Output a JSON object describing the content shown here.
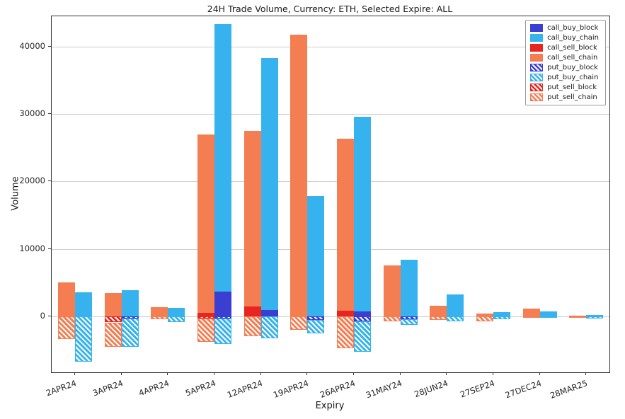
{
  "chart_data": {
    "type": "bar",
    "title": "24H Trade Volume, Currency: ETH, Selected Expire: ALL",
    "xlabel": "Expiry",
    "ylabel": "Volume",
    "ylim": [
      -8300,
      44500
    ],
    "yticks": [
      0,
      10000,
      20000,
      30000,
      40000
    ],
    "grid": "horizontal",
    "legend_position": "upper-right",
    "bar_groups": "two bars per expiry: left=sell stack, right=buy stack; puts are negative and hatched",
    "categories": [
      "2APR24",
      "3APR24",
      "4APR24",
      "5APR24",
      "12APR24",
      "19APR24",
      "26APR24",
      "31MAY24",
      "28JUN24",
      "27SEP24",
      "27DEC24",
      "28MAR25"
    ],
    "series": [
      {
        "name": "call_buy_block",
        "color": "#3a3fd1",
        "hatch": false,
        "values": [
          0,
          0,
          0,
          3700,
          900,
          0,
          700,
          0,
          0,
          0,
          0,
          0
        ]
      },
      {
        "name": "call_buy_chain",
        "color": "#36b3ef",
        "hatch": false,
        "values": [
          3600,
          3900,
          1300,
          39600,
          37400,
          17800,
          28900,
          8400,
          3200,
          600,
          700,
          200
        ]
      },
      {
        "name": "call_sell_block",
        "color": "#e8251f",
        "hatch": false,
        "values": [
          0,
          0,
          0,
          500,
          1500,
          0,
          800,
          0,
          0,
          0,
          0,
          0
        ]
      },
      {
        "name": "call_sell_chain",
        "color": "#f57d52",
        "hatch": false,
        "values": [
          5000,
          3500,
          1400,
          26500,
          26000,
          41800,
          25500,
          7600,
          1600,
          400,
          1200,
          100
        ]
      },
      {
        "name": "put_buy_block",
        "color": "#3a3fd1",
        "hatch": true,
        "values": [
          0,
          -300,
          0,
          -300,
          0,
          -500,
          -700,
          -400,
          0,
          0,
          0,
          0
        ]
      },
      {
        "name": "put_buy_chain",
        "color": "#36b3ef",
        "hatch": true,
        "values": [
          -6700,
          -4200,
          -900,
          -3800,
          -3300,
          -2000,
          -4600,
          -900,
          -800,
          -400,
          -100,
          -300
        ]
      },
      {
        "name": "put_sell_block",
        "color": "#e8251f",
        "hatch": true,
        "values": [
          0,
          -900,
          0,
          -300,
          0,
          0,
          0,
          0,
          0,
          0,
          0,
          0
        ]
      },
      {
        "name": "put_sell_chain",
        "color": "#f57d52",
        "hatch": true,
        "values": [
          -3400,
          -3600,
          -400,
          -3500,
          -3000,
          -2000,
          -4700,
          -700,
          -500,
          -700,
          -100,
          -200
        ]
      }
    ]
  }
}
